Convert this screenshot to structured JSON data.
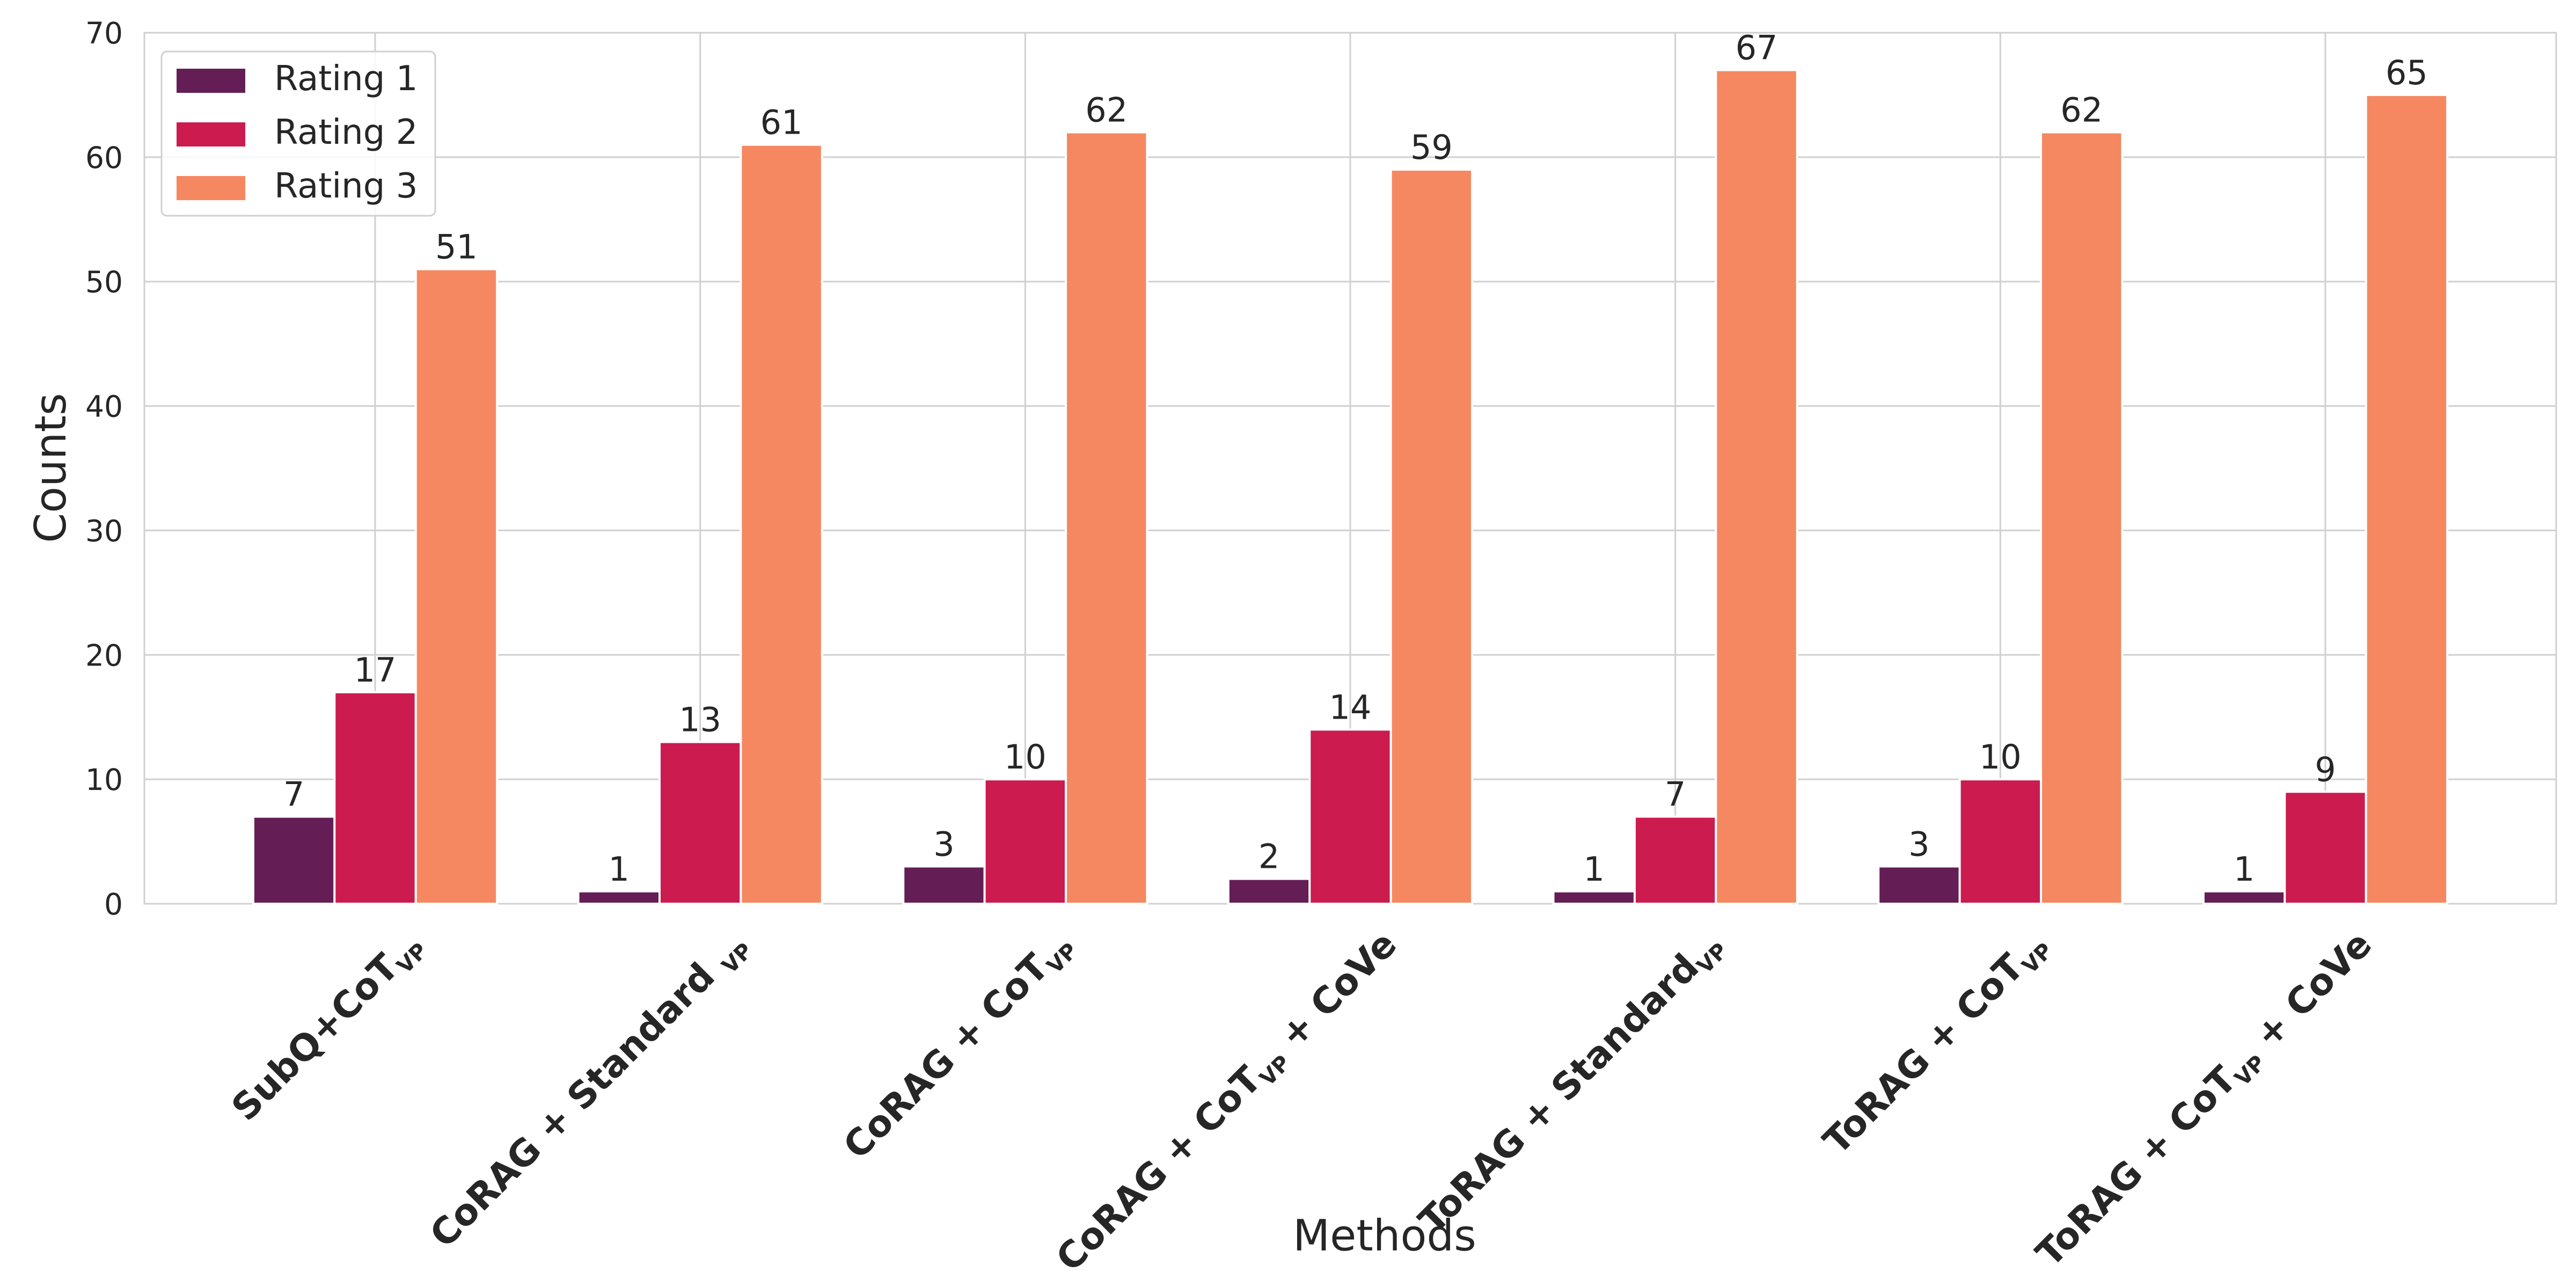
{
  "chart_data": {
    "type": "bar",
    "xlabel": "Methods",
    "ylabel": "Counts",
    "categories": [
      {
        "parts": [
          {
            "text": "SubQ+CoT"
          },
          {
            "sub": "VP"
          }
        ]
      },
      {
        "parts": [
          {
            "text": "CoRAG + Standard "
          },
          {
            "sub": "VP"
          }
        ]
      },
      {
        "parts": [
          {
            "text": "CoRAG + CoT"
          },
          {
            "sub": "VP"
          }
        ]
      },
      {
        "parts": [
          {
            "text": "CoRAG + CoT"
          },
          {
            "sub": "VP"
          },
          {
            "text": " + CoVe"
          }
        ]
      },
      {
        "parts": [
          {
            "text": "ToRAG + Standard"
          },
          {
            "sub": "VP"
          }
        ]
      },
      {
        "parts": [
          {
            "text": "ToRAG + CoT"
          },
          {
            "sub": "VP"
          }
        ]
      },
      {
        "parts": [
          {
            "text": "ToRAG + CoT"
          },
          {
            "sub": "VP"
          },
          {
            "text": " + CoVe"
          }
        ]
      }
    ],
    "series": [
      {
        "name": "Rating 1",
        "color": "#641e55",
        "values": [
          7,
          1,
          3,
          2,
          1,
          3,
          1
        ]
      },
      {
        "name": "Rating 2",
        "color": "#cb1b4f",
        "values": [
          17,
          13,
          10,
          14,
          7,
          10,
          9
        ]
      },
      {
        "name": "Rating 3",
        "color": "#f58860",
        "values": [
          51,
          61,
          62,
          59,
          67,
          62,
          65
        ]
      }
    ],
    "ylim": [
      0,
      70
    ],
    "yticks": [
      0,
      10,
      20,
      30,
      40,
      50,
      60,
      70
    ],
    "grid": true,
    "legend": "upper left",
    "value_labels_shown": true
  }
}
